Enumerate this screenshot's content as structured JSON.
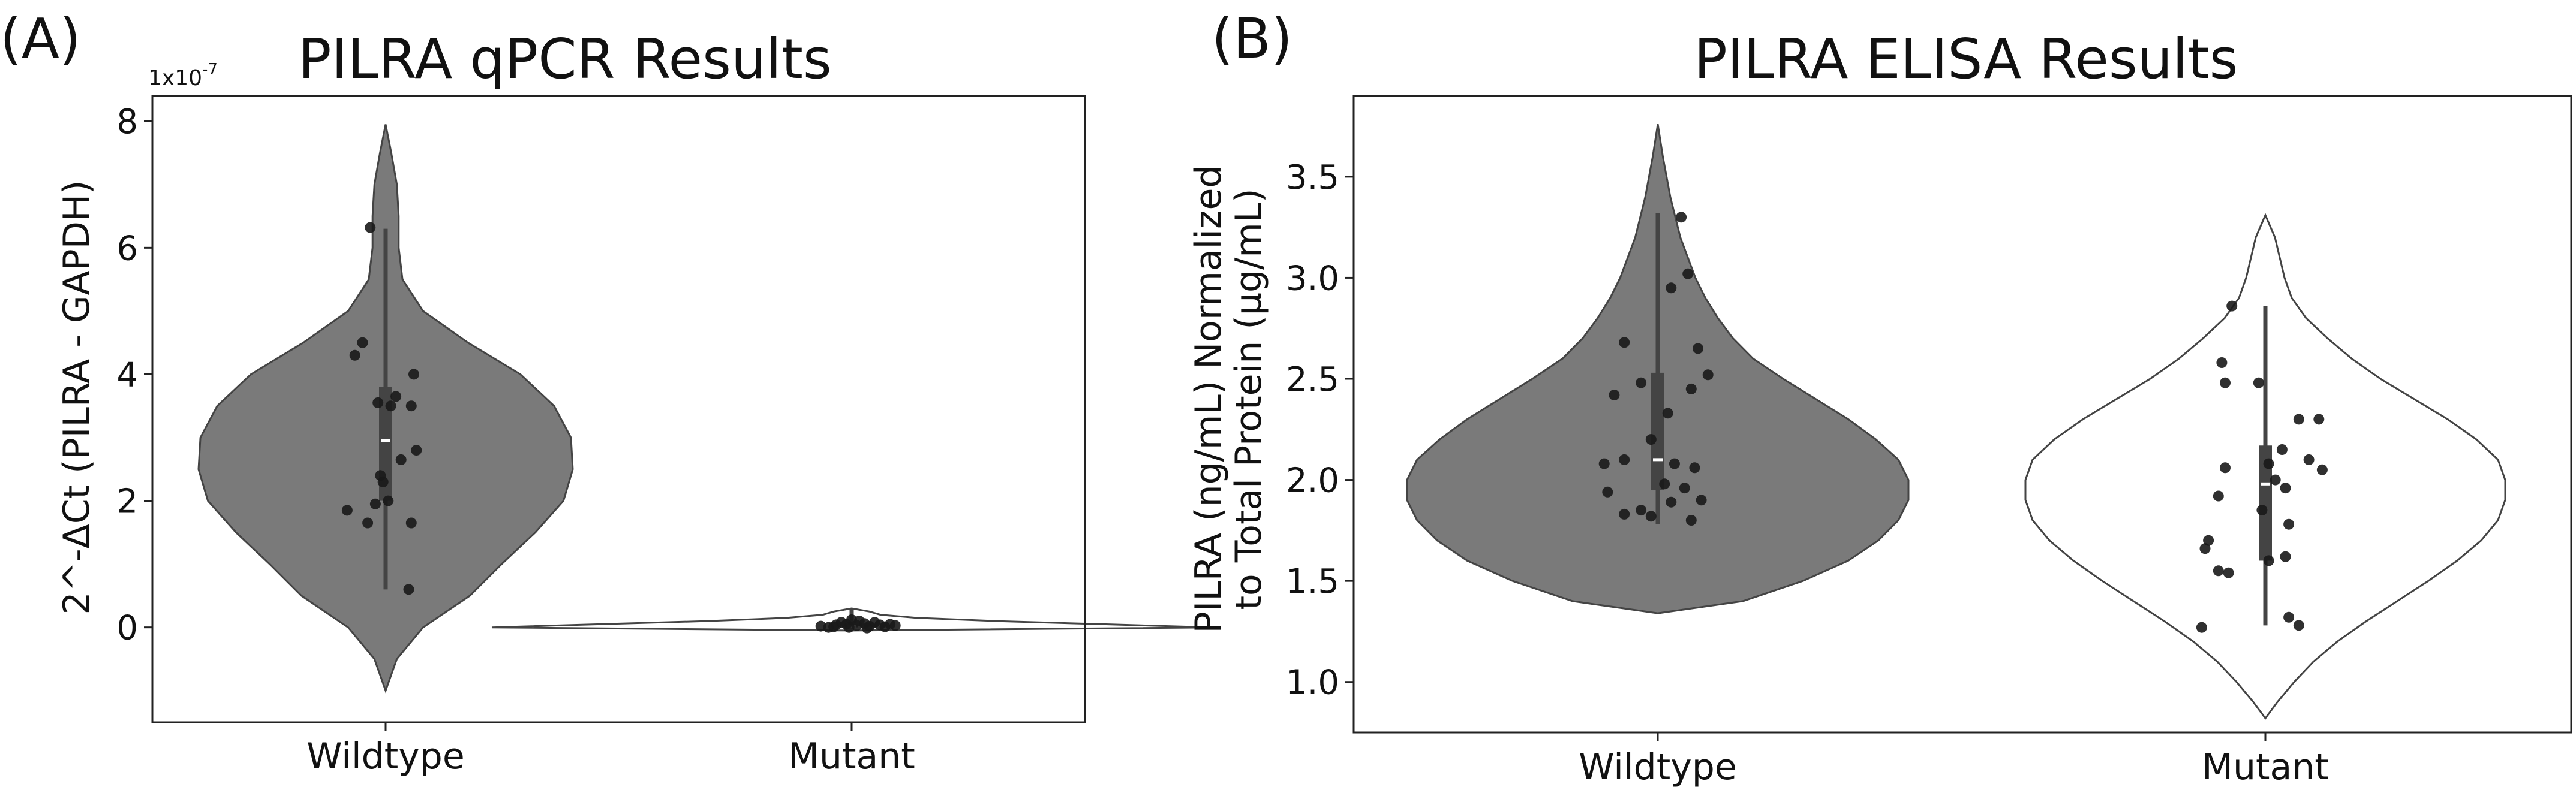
{
  "chart_data": [
    {
      "type": "violin",
      "panel_label": "(A)",
      "title": "PILRA qPCR Results",
      "xlabel": "",
      "ylabel": "2^-ΔCt (PILRA - GAPDH)",
      "axis_multiplier_text": "1x10",
      "axis_multiplier_exponent": "-7",
      "ylim": [
        -1.5,
        8.4
      ],
      "yticks": [
        0,
        2,
        4,
        6,
        8
      ],
      "ytick_labels": [
        "0",
        "2",
        "4",
        "6",
        "8"
      ],
      "categories": [
        "Wildtype",
        "Mutant"
      ],
      "fill_colors": [
        "#7a7a7a",
        "#ffffff"
      ],
      "outline_color": "#444444",
      "point_color": "#1a1a1a",
      "series": [
        {
          "name": "Wildtype",
          "violin_profile": [
            [
              -1.0,
              0.0
            ],
            [
              -0.5,
              0.06
            ],
            [
              0.0,
              0.2
            ],
            [
              0.5,
              0.45
            ],
            [
              1.0,
              0.62
            ],
            [
              1.5,
              0.8
            ],
            [
              2.0,
              0.95
            ],
            [
              2.5,
              1.0
            ],
            [
              3.0,
              0.99
            ],
            [
              3.5,
              0.9
            ],
            [
              4.0,
              0.72
            ],
            [
              4.5,
              0.44
            ],
            [
              5.0,
              0.2
            ],
            [
              5.5,
              0.09
            ],
            [
              6.0,
              0.07
            ],
            [
              6.5,
              0.07
            ],
            [
              7.0,
              0.06
            ],
            [
              7.5,
              0.03
            ],
            [
              7.95,
              0.0
            ]
          ],
          "box": {
            "q1": 2.0,
            "median": 2.95,
            "q3": 3.8,
            "whisker_low": 0.6,
            "whisker_high": 6.3
          },
          "points": [
            {
              "dx": -0.06,
              "y": 6.32
            },
            {
              "dx": -0.09,
              "y": 4.5
            },
            {
              "dx": -0.12,
              "y": 4.3
            },
            {
              "dx": 0.11,
              "y": 4.0
            },
            {
              "dx": 0.04,
              "y": 3.65
            },
            {
              "dx": -0.03,
              "y": 3.55
            },
            {
              "dx": 0.02,
              "y": 3.5
            },
            {
              "dx": 0.1,
              "y": 3.5
            },
            {
              "dx": 0.06,
              "y": 2.65
            },
            {
              "dx": 0.12,
              "y": 2.8
            },
            {
              "dx": -0.02,
              "y": 2.4
            },
            {
              "dx": -0.01,
              "y": 2.3
            },
            {
              "dx": 0.01,
              "y": 2.0
            },
            {
              "dx": -0.04,
              "y": 1.95
            },
            {
              "dx": -0.15,
              "y": 1.85
            },
            {
              "dx": -0.07,
              "y": 1.65
            },
            {
              "dx": 0.1,
              "y": 1.65
            },
            {
              "dx": 0.09,
              "y": 0.6
            }
          ]
        },
        {
          "name": "Mutant",
          "violin_profile": [
            [
              -0.05,
              0.0
            ],
            [
              0.0,
              1.0
            ],
            [
              0.05,
              0.7
            ],
            [
              0.1,
              0.4
            ],
            [
              0.15,
              0.18
            ],
            [
              0.2,
              0.08
            ],
            [
              0.25,
              0.05
            ],
            [
              0.3,
              0.0
            ]
          ],
          "box": {
            "q1": 0.0,
            "median": 0.02,
            "q3": 0.05,
            "whisker_low": -0.02,
            "whisker_high": 0.3
          },
          "points": [
            {
              "dx": -0.12,
              "y": 0.02
            },
            {
              "dx": -0.09,
              "y": 0.0
            },
            {
              "dx": -0.06,
              "y": 0.04
            },
            {
              "dx": -0.04,
              "y": 0.08
            },
            {
              "dx": -0.02,
              "y": 0.05
            },
            {
              "dx": 0.0,
              "y": 0.12
            },
            {
              "dx": 0.02,
              "y": 0.03
            },
            {
              "dx": 0.03,
              "y": 0.1
            },
            {
              "dx": 0.05,
              "y": 0.06
            },
            {
              "dx": 0.07,
              "y": 0.02
            },
            {
              "dx": 0.09,
              "y": 0.08
            },
            {
              "dx": 0.11,
              "y": 0.04
            },
            {
              "dx": 0.13,
              "y": 0.01
            },
            {
              "dx": 0.15,
              "y": 0.05
            },
            {
              "dx": 0.17,
              "y": 0.03
            },
            {
              "dx": -0.01,
              "y": 0.0
            },
            {
              "dx": 0.06,
              "y": -0.01
            },
            {
              "dx": -0.07,
              "y": 0.01
            }
          ]
        }
      ]
    },
    {
      "type": "violin",
      "panel_label": "(B)",
      "title": "PILRA ELISA Results",
      "xlabel": "",
      "ylabel": "PILRA (ng/mL) Normalized",
      "ylabel_line2": "to Total Protein (µg/mL)",
      "ylim": [
        0.75,
        3.9
      ],
      "yticks": [
        1.0,
        1.5,
        2.0,
        2.5,
        3.0,
        3.5
      ],
      "ytick_labels": [
        "1.0",
        "1.5",
        "2.0",
        "2.5",
        "3.0",
        "3.5"
      ],
      "categories": [
        "Wildtype",
        "Mutant"
      ],
      "fill_colors": [
        "#7a7a7a",
        "#ffffff"
      ],
      "outline_color": "#444444",
      "point_color": "#1a1a1a",
      "series": [
        {
          "name": "Wildtype",
          "violin_profile": [
            [
              1.34,
              0.0
            ],
            [
              1.4,
              0.34
            ],
            [
              1.5,
              0.58
            ],
            [
              1.6,
              0.76
            ],
            [
              1.7,
              0.88
            ],
            [
              1.8,
              0.96
            ],
            [
              1.9,
              1.0
            ],
            [
              2.0,
              1.0
            ],
            [
              2.1,
              0.96
            ],
            [
              2.2,
              0.87
            ],
            [
              2.3,
              0.76
            ],
            [
              2.4,
              0.63
            ],
            [
              2.5,
              0.5
            ],
            [
              2.6,
              0.38
            ],
            [
              2.7,
              0.3
            ],
            [
              2.8,
              0.24
            ],
            [
              2.9,
              0.19
            ],
            [
              3.0,
              0.15
            ],
            [
              3.2,
              0.09
            ],
            [
              3.4,
              0.05
            ],
            [
              3.6,
              0.02
            ],
            [
              3.76,
              0.0
            ]
          ],
          "box": {
            "q1": 1.95,
            "median": 2.1,
            "q3": 2.53,
            "whisker_low": 1.78,
            "whisker_high": 3.32
          },
          "points": [
            {
              "dx": 0.07,
              "y": 3.3
            },
            {
              "dx": 0.09,
              "y": 3.02
            },
            {
              "dx": 0.04,
              "y": 2.95
            },
            {
              "dx": -0.1,
              "y": 2.68
            },
            {
              "dx": 0.12,
              "y": 2.65
            },
            {
              "dx": -0.13,
              "y": 2.42
            },
            {
              "dx": -0.05,
              "y": 2.48
            },
            {
              "dx": 0.1,
              "y": 2.45
            },
            {
              "dx": 0.15,
              "y": 2.52
            },
            {
              "dx": 0.03,
              "y": 2.33
            },
            {
              "dx": -0.02,
              "y": 2.2
            },
            {
              "dx": -0.1,
              "y": 2.1
            },
            {
              "dx": 0.05,
              "y": 2.08
            },
            {
              "dx": 0.11,
              "y": 2.06
            },
            {
              "dx": -0.16,
              "y": 2.08
            },
            {
              "dx": 0.02,
              "y": 1.98
            },
            {
              "dx": 0.08,
              "y": 1.96
            },
            {
              "dx": -0.15,
              "y": 1.94
            },
            {
              "dx": 0.13,
              "y": 1.9
            },
            {
              "dx": 0.04,
              "y": 1.89
            },
            {
              "dx": -0.05,
              "y": 1.85
            },
            {
              "dx": -0.1,
              "y": 1.83
            },
            {
              "dx": -0.02,
              "y": 1.82
            },
            {
              "dx": 0.1,
              "y": 1.8
            }
          ]
        },
        {
          "name": "Mutant",
          "violin_profile": [
            [
              0.82,
              0.0
            ],
            [
              0.9,
              0.05
            ],
            [
              1.0,
              0.12
            ],
            [
              1.1,
              0.2
            ],
            [
              1.2,
              0.3
            ],
            [
              1.3,
              0.42
            ],
            [
              1.4,
              0.55
            ],
            [
              1.5,
              0.68
            ],
            [
              1.6,
              0.8
            ],
            [
              1.7,
              0.9
            ],
            [
              1.8,
              0.97
            ],
            [
              1.9,
              1.0
            ],
            [
              2.0,
              1.0
            ],
            [
              2.1,
              0.97
            ],
            [
              2.2,
              0.88
            ],
            [
              2.3,
              0.76
            ],
            [
              2.4,
              0.62
            ],
            [
              2.5,
              0.48
            ],
            [
              2.6,
              0.36
            ],
            [
              2.7,
              0.26
            ],
            [
              2.8,
              0.17
            ],
            [
              2.9,
              0.11
            ],
            [
              3.0,
              0.08
            ],
            [
              3.1,
              0.06
            ],
            [
              3.2,
              0.04
            ],
            [
              3.31,
              0.0
            ]
          ],
          "box": {
            "q1": 1.6,
            "median": 1.98,
            "q3": 2.17,
            "whisker_low": 1.28,
            "whisker_high": 2.86
          },
          "points": [
            {
              "dx": -0.1,
              "y": 2.86
            },
            {
              "dx": -0.13,
              "y": 2.58
            },
            {
              "dx": -0.12,
              "y": 2.48
            },
            {
              "dx": -0.02,
              "y": 2.48
            },
            {
              "dx": 0.1,
              "y": 2.3
            },
            {
              "dx": 0.16,
              "y": 2.3
            },
            {
              "dx": 0.05,
              "y": 2.15
            },
            {
              "dx": 0.13,
              "y": 2.1
            },
            {
              "dx": 0.17,
              "y": 2.05
            },
            {
              "dx": -0.12,
              "y": 2.06
            },
            {
              "dx": 0.01,
              "y": 2.08
            },
            {
              "dx": 0.03,
              "y": 2.0
            },
            {
              "dx": -0.14,
              "y": 1.92
            },
            {
              "dx": 0.06,
              "y": 1.96
            },
            {
              "dx": -0.01,
              "y": 1.85
            },
            {
              "dx": 0.07,
              "y": 1.78
            },
            {
              "dx": -0.17,
              "y": 1.7
            },
            {
              "dx": -0.18,
              "y": 1.66
            },
            {
              "dx": 0.01,
              "y": 1.6
            },
            {
              "dx": 0.06,
              "y": 1.62
            },
            {
              "dx": -0.14,
              "y": 1.55
            },
            {
              "dx": -0.11,
              "y": 1.54
            },
            {
              "dx": 0.07,
              "y": 1.32
            },
            {
              "dx": 0.1,
              "y": 1.28
            },
            {
              "dx": -0.19,
              "y": 1.27
            }
          ]
        }
      ]
    }
  ]
}
